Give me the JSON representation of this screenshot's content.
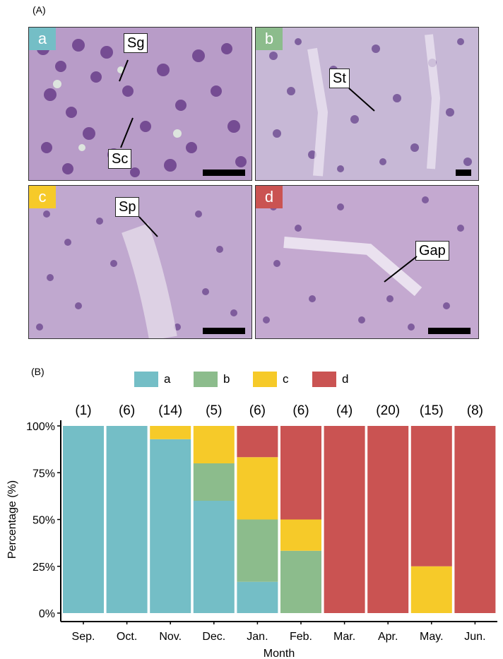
{
  "panel_a_label": "(A)",
  "panel_b_label": "(B)",
  "micrographs": [
    {
      "badge": "a",
      "badge_color": "#74bec6",
      "labels": [
        "Sg",
        "Sc"
      ]
    },
    {
      "badge": "b",
      "badge_color": "#8cbc8c",
      "labels": [
        "St"
      ]
    },
    {
      "badge": "c",
      "badge_color": "#f6ca29",
      "labels": [
        "Sp"
      ]
    },
    {
      "badge": "d",
      "badge_color": "#ca5352",
      "labels": [
        "Gap"
      ]
    }
  ],
  "chart_data": {
    "type": "bar",
    "stacked": true,
    "xlabel": "Month",
    "ylabel": "Percentage (%)",
    "ylim": [
      0,
      100
    ],
    "yticks": [
      "0%",
      "25%",
      "50%",
      "75%",
      "100%"
    ],
    "categories": [
      "Sep.",
      "Oct.",
      "Nov.",
      "Dec.",
      "Jan.",
      "Feb.",
      "Mar.",
      "Apr.",
      "May.",
      "Jun."
    ],
    "sample_sizes": [
      "(1)",
      "(6)",
      "(14)",
      "(5)",
      "(6)",
      "(6)",
      "(4)",
      "(20)",
      "(15)",
      "(8)"
    ],
    "legend_position": "top",
    "series": [
      {
        "name": "a",
        "color": "#74bec6",
        "values": [
          100,
          100,
          92.9,
          60,
          16.7,
          0,
          0,
          0,
          0,
          0
        ]
      },
      {
        "name": "b",
        "color": "#8cbc8c",
        "values": [
          0,
          0,
          0,
          20,
          33.3,
          33.3,
          0,
          0,
          0,
          0
        ]
      },
      {
        "name": "c",
        "color": "#f6ca29",
        "values": [
          0,
          0,
          7.1,
          20,
          33.3,
          16.7,
          0,
          0,
          25,
          0
        ]
      },
      {
        "name": "d",
        "color": "#ca5352",
        "values": [
          0,
          0,
          0,
          0,
          16.7,
          50,
          100,
          100,
          75,
          100
        ]
      }
    ]
  }
}
